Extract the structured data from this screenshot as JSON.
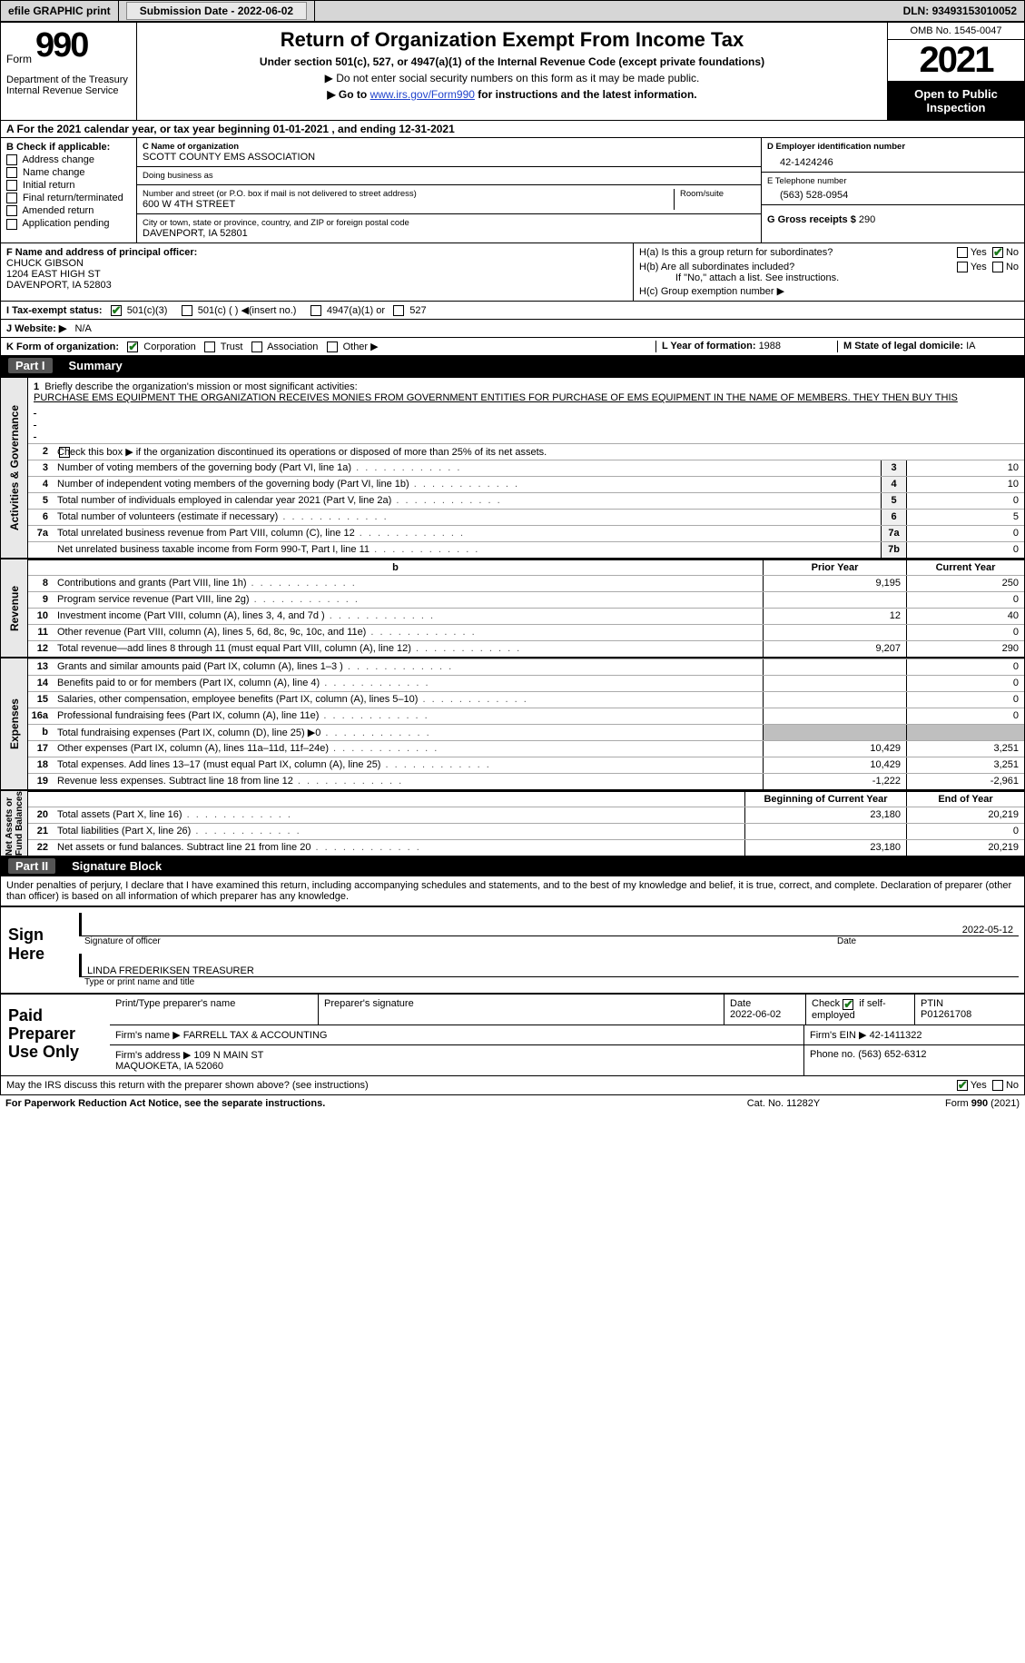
{
  "topbar": {
    "efile": "efile GRAPHIC print",
    "subdate_label": "Submission Date - ",
    "subdate": "2022-06-02",
    "dln_label": "DLN: ",
    "dln": "93493153010052"
  },
  "header": {
    "form_word": "Form",
    "form_num": "990",
    "dept": "Department of the Treasury\nInternal Revenue Service",
    "title": "Return of Organization Exempt From Income Tax",
    "sub": "Under section 501(c), 527, or 4947(a)(1) of the Internal Revenue Code (except private foundations)",
    "nosocial": "▶ Do not enter social security numbers on this form as it may be made public.",
    "goto_pre": "▶ Go to ",
    "goto_link": "www.irs.gov/Form990",
    "goto_post": " for instructions and the latest information.",
    "omb": "OMB No. 1545-0047",
    "year": "2021",
    "open": "Open to Public Inspection"
  },
  "a_line": "A For the 2021 calendar year, or tax year beginning 01-01-2021   , and ending 12-31-2021",
  "b": {
    "hd": "B Check if applicable:",
    "opts": [
      "Address change",
      "Name change",
      "Initial return",
      "Final return/terminated",
      "Amended return",
      "Application pending"
    ]
  },
  "c": {
    "name_lbl": "C Name of organization",
    "name": "SCOTT COUNTY EMS ASSOCIATION",
    "dba_lbl": "Doing business as",
    "dba": "",
    "addr_lbl": "Number and street (or P.O. box if mail is not delivered to street address)",
    "room_lbl": "Room/suite",
    "addr": "600 W 4TH STREET",
    "city_lbl": "City or town, state or province, country, and ZIP or foreign postal code",
    "city": "DAVENPORT, IA  52801"
  },
  "d": {
    "ein_lbl": "D Employer identification number",
    "ein": "42-1424246",
    "tel_lbl": "E Telephone number",
    "tel": "(563) 528-0954",
    "gross_lbl": "G Gross receipts $ ",
    "gross": "290"
  },
  "f": {
    "lbl": "F Name and address of principal officer:",
    "name": "CHUCK GIBSON",
    "addr1": "1204 EAST HIGH ST",
    "addr2": "DAVENPORT, IA  52803"
  },
  "h": {
    "a_lbl": "H(a)  Is this a group return for subordinates?",
    "b_lbl": "H(b)  Are all subordinates included?",
    "b_note": "If \"No,\" attach a list. See instructions.",
    "c_lbl": "H(c)  Group exemption number ▶",
    "yes": "Yes",
    "no": "No"
  },
  "i": {
    "lbl": "I  Tax-exempt status:",
    "o1": "501(c)(3)",
    "o2": "501(c) (  ) ◀(insert no.)",
    "o3": "4947(a)(1) or",
    "o4": "527"
  },
  "j": {
    "lbl": "J  Website: ▶",
    "val": "N/A"
  },
  "k": {
    "lbl": "K Form of organization:",
    "o1": "Corporation",
    "o2": "Trust",
    "o3": "Association",
    "o4": "Other ▶"
  },
  "l": {
    "lbl": "L Year of formation: ",
    "val": "1988"
  },
  "m": {
    "lbl": "M State of legal domicile: ",
    "val": "IA"
  },
  "part1": {
    "tag": "Part I",
    "title": "Summary"
  },
  "mission": {
    "lead": "Briefly describe the organization's mission or most significant activities:",
    "text": "PURCHASE EMS EQUIPMENT THE ORGANIZATION RECEIVES MONIES FROM GOVERNMENT ENTITIES FOR PURCHASE OF EMS EQUIPMENT IN THE NAME OF MEMBERS. THEY THEN BUY THIS"
  },
  "line2": "Check this box ▶       if the organization discontinued its operations or disposed of more than 25% of its net assets.",
  "gov_lines": [
    {
      "n": "3",
      "t": "Number of voting members of the governing body (Part VI, line 1a)",
      "box": "3",
      "v": "10"
    },
    {
      "n": "4",
      "t": "Number of independent voting members of the governing body (Part VI, line 1b)",
      "box": "4",
      "v": "10"
    },
    {
      "n": "5",
      "t": "Total number of individuals employed in calendar year 2021 (Part V, line 2a)",
      "box": "5",
      "v": "0"
    },
    {
      "n": "6",
      "t": "Total number of volunteers (estimate if necessary)",
      "box": "6",
      "v": "5"
    },
    {
      "n": "7a",
      "t": "Total unrelated business revenue from Part VIII, column (C), line 12",
      "box": "7a",
      "v": "0"
    },
    {
      "n": "",
      "t": "Net unrelated business taxable income from Form 990-T, Part I, line 11",
      "box": "7b",
      "v": "0"
    }
  ],
  "colhdr": {
    "prior": "Prior Year",
    "current": "Current Year",
    "boy": "Beginning of Current Year",
    "eoy": "End of Year"
  },
  "revenue": [
    {
      "n": "8",
      "t": "Contributions and grants (Part VIII, line 1h)",
      "p": "9,195",
      "c": "250"
    },
    {
      "n": "9",
      "t": "Program service revenue (Part VIII, line 2g)",
      "p": "",
      "c": "0"
    },
    {
      "n": "10",
      "t": "Investment income (Part VIII, column (A), lines 3, 4, and 7d )",
      "p": "12",
      "c": "40"
    },
    {
      "n": "11",
      "t": "Other revenue (Part VIII, column (A), lines 5, 6d, 8c, 9c, 10c, and 11e)",
      "p": "",
      "c": "0"
    },
    {
      "n": "12",
      "t": "Total revenue—add lines 8 through 11 (must equal Part VIII, column (A), line 12)",
      "p": "9,207",
      "c": "290"
    }
  ],
  "expenses": [
    {
      "n": "13",
      "t": "Grants and similar amounts paid (Part IX, column (A), lines 1–3 )",
      "p": "",
      "c": "0"
    },
    {
      "n": "14",
      "t": "Benefits paid to or for members (Part IX, column (A), line 4)",
      "p": "",
      "c": "0"
    },
    {
      "n": "15",
      "t": "Salaries, other compensation, employee benefits (Part IX, column (A), lines 5–10)",
      "p": "",
      "c": "0"
    },
    {
      "n": "16a",
      "t": "Professional fundraising fees (Part IX, column (A), line 11e)",
      "p": "",
      "c": "0"
    },
    {
      "n": "b",
      "t": "Total fundraising expenses (Part IX, column (D), line 25) ▶0",
      "p": "SHADE",
      "c": "SHADE"
    },
    {
      "n": "17",
      "t": "Other expenses (Part IX, column (A), lines 11a–11d, 11f–24e)",
      "p": "10,429",
      "c": "3,251"
    },
    {
      "n": "18",
      "t": "Total expenses. Add lines 13–17 (must equal Part IX, column (A), line 25)",
      "p": "10,429",
      "c": "3,251"
    },
    {
      "n": "19",
      "t": "Revenue less expenses. Subtract line 18 from line 12",
      "p": "-1,222",
      "c": "-2,961"
    }
  ],
  "netassets": [
    {
      "n": "20",
      "t": "Total assets (Part X, line 16)",
      "p": "23,180",
      "c": "20,219"
    },
    {
      "n": "21",
      "t": "Total liabilities (Part X, line 26)",
      "p": "",
      "c": "0"
    },
    {
      "n": "22",
      "t": "Net assets or fund balances. Subtract line 21 from line 20",
      "p": "23,180",
      "c": "20,219"
    }
  ],
  "vtabs": {
    "gov": "Activities & Governance",
    "rev": "Revenue",
    "exp": "Expenses",
    "net": "Net Assets or\nFund Balances"
  },
  "part2": {
    "tag": "Part II",
    "title": "Signature Block"
  },
  "perjury": "Under penalties of perjury, I declare that I have examined this return, including accompanying schedules and statements, and to the best of my knowledge and belief, it is true, correct, and complete. Declaration of preparer (other than officer) is based on all information of which preparer has any knowledge.",
  "sign": {
    "lbl": "Sign Here",
    "sig_lbl": "Signature of officer",
    "date_lbl": "Date",
    "date": "2022-05-12",
    "name": "LINDA FREDERIKSEN  TREASURER",
    "name_lbl": "Type or print name and title"
  },
  "paid": {
    "lbl": "Paid Preparer Use Only",
    "h1": "Print/Type preparer's name",
    "h2": "Preparer's signature",
    "h3_lbl": "Date",
    "h3": "2022-06-02",
    "h4_lbl": "Check        if self-employed",
    "h5_lbl": "PTIN",
    "h5": "P01261708",
    "firm_lbl": "Firm's name    ▶ ",
    "firm": "FARRELL TAX & ACCOUNTING",
    "ein_lbl": "Firm's EIN ▶ ",
    "ein": "42-1411322",
    "addr_lbl": "Firm's address ▶ ",
    "addr": "109 N MAIN ST\nMAQUOKETA, IA  52060",
    "phone_lbl": "Phone no. ",
    "phone": "(563) 652-6312"
  },
  "discuss": "May the IRS discuss this return with the preparer shown above? (see instructions)",
  "footer": {
    "pra": "For Paperwork Reduction Act Notice, see the separate instructions.",
    "cat": "Cat. No. 11282Y",
    "form": "Form 990 (2021)"
  }
}
